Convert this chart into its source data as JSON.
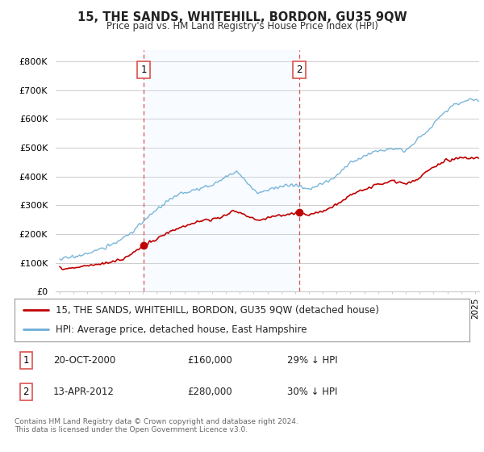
{
  "title": "15, THE SANDS, WHITEHILL, BORDON, GU35 9QW",
  "subtitle": "Price paid vs. HM Land Registry's House Price Index (HPI)",
  "ylabel_ticks": [
    "£0",
    "£100K",
    "£200K",
    "£300K",
    "£400K",
    "£500K",
    "£600K",
    "£700K",
    "£800K"
  ],
  "ytick_vals": [
    0,
    100000,
    200000,
    300000,
    400000,
    500000,
    600000,
    700000,
    800000
  ],
  "ylim": [
    0,
    840000
  ],
  "xlim_start": 1994.7,
  "xlim_end": 2025.3,
  "legend_line1": "15, THE SANDS, WHITEHILL, BORDON, GU35 9QW (detached house)",
  "legend_line2": "HPI: Average price, detached house, East Hampshire",
  "sale1_x": 2001.05,
  "sale1_y": 160000,
  "sale2_x": 2012.29,
  "sale2_y": 275000,
  "hpi_color": "#6baed6",
  "price_color": "#c00000",
  "vline_color": "#d9534f",
  "shade_color": "#ddeeff",
  "bg_color": "#ffffff",
  "grid_color": "#cccccc",
  "footer": "Contains HM Land Registry data © Crown copyright and database right 2024.\nThis data is licensed under the Open Government Licence v3.0."
}
